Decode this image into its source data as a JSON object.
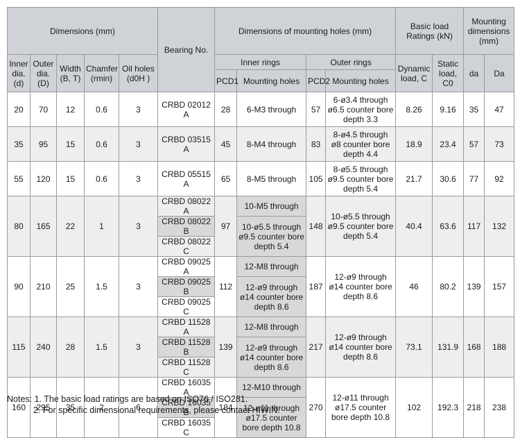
{
  "headers": {
    "dimensions": "Dimensions (mm)",
    "bearing_no": "Bearing No.",
    "mounting_holes_dims": "Dimensions of mounting holes (mm)",
    "basic_load": "Basic load Ratings (kN)",
    "mounting_dims": "Mounting dimensions (mm)",
    "inner_dia": "Inner dia. (d)",
    "outer_dia": "Outer dia. (D)",
    "width": "Width (B, T)",
    "chamfer": "Chamfer (rmin)",
    "oil_holes": "Oil holes (d0H )",
    "inner_rings": "Inner rings",
    "outer_rings": "Outer rings",
    "pcd1": "PCD1",
    "pcd2": "PCD2",
    "mounting_holes": "Mounting holes",
    "dynamic": "Dynamic load, C",
    "static": "Static load, C0",
    "da_small": "da",
    "da_large": "Da"
  },
  "groups": [
    {
      "d": "20",
      "D": "70",
      "B": "12",
      "r": "0.6",
      "oil": "3",
      "pcd1": "28",
      "pcd2": "57",
      "c": "8.26",
      "c0": "9.16",
      "da": "35",
      "Da": "47",
      "shade": "white",
      "rows": [
        {
          "bearing": "CRBD 02012 A",
          "inner": "6-M3 through"
        }
      ],
      "outer": "6-ø3.4 through ø6.5 counter bore depth 3.3"
    },
    {
      "d": "35",
      "D": "95",
      "B": "15",
      "r": "0.6",
      "oil": "3",
      "pcd1": "45",
      "pcd2": "83",
      "c": "18.9",
      "c0": "23.4",
      "da": "57",
      "Da": "73",
      "shade": "gray",
      "rows": [
        {
          "bearing": "CRBD 03515 A",
          "inner": "8-M4 through"
        }
      ],
      "outer": "8-ø4.5 through ø8 counter bore depth 4.4"
    },
    {
      "d": "55",
      "D": "120",
      "B": "15",
      "r": "0.6",
      "oil": "3",
      "pcd1": "65",
      "pcd2": "105",
      "c": "21.7",
      "c0": "30.6",
      "da": "77",
      "Da": "92",
      "shade": "white",
      "rows": [
        {
          "bearing": "CRBD 05515 A",
          "inner": "8-M5 through"
        }
      ],
      "outer": "8-ø5.5 through ø9.5 counter bore depth 5.4"
    },
    {
      "d": "80",
      "D": "165",
      "B": "22",
      "r": "1",
      "oil": "3",
      "pcd1": "97",
      "pcd2": "148",
      "c": "40.4",
      "c0": "63.6",
      "da": "117",
      "Da": "132",
      "shade": "gray",
      "rows": [
        {
          "bearing": "CRBD 08022 A",
          "inner": "10-M5 through"
        },
        {
          "bearing": "CRBD 08022 B",
          "inner": "10-ø5.5 through ø9.5 counter bore depth 5.4"
        },
        {
          "bearing": "CRBD 08022 C",
          "inner": ""
        }
      ],
      "outer": "10-ø5.5 through ø9.5 counter bore depth 5.4"
    },
    {
      "d": "90",
      "D": "210",
      "B": "25",
      "r": "1.5",
      "oil": "3",
      "pcd1": "112",
      "pcd2": "187",
      "c": "46",
      "c0": "80.2",
      "da": "139",
      "Da": "157",
      "shade": "white",
      "rows": [
        {
          "bearing": "CRBD 09025 A",
          "inner": "12-M8 through"
        },
        {
          "bearing": "CRBD 09025 B",
          "inner": "12-ø9 through ø14 counter bore depth 8.6"
        },
        {
          "bearing": "CRBD 09025 C",
          "inner": ""
        }
      ],
      "outer": "12-ø9 through ø14 counter bore depth 8.6"
    },
    {
      "d": "115",
      "D": "240",
      "B": "28",
      "r": "1.5",
      "oil": "3",
      "pcd1": "139",
      "pcd2": "217",
      "c": "73.1",
      "c0": "131.9",
      "da": "168",
      "Da": "188",
      "shade": "gray",
      "rows": [
        {
          "bearing": "CRBD 11528 A",
          "inner": "12-M8 through"
        },
        {
          "bearing": "CRBD 11528 B",
          "inner": "12-ø9 through ø14 counter bore depth 8.6"
        },
        {
          "bearing": "CRBD 11528 C",
          "inner": ""
        }
      ],
      "outer": "12-ø9 through ø14 counter bore depth 8.6"
    },
    {
      "d": "160",
      "D": "295",
      "B": "35",
      "r": "2",
      "oil": "6",
      "pcd1": "184",
      "pcd2": "270",
      "c": "102",
      "c0": "192.3",
      "da": "218",
      "Da": "238",
      "shade": "white",
      "rows": [
        {
          "bearing": "CRBD 16035 A",
          "inner": "12-M10 through"
        },
        {
          "bearing": "CRBD 16035 B",
          "inner": "12-ø11 through ø17.5 counter bore depth 10.8"
        },
        {
          "bearing": "CRBD 16035 C",
          "inner": ""
        }
      ],
      "outer": "12-ø11 through ø17.5 counter bore depth 10.8"
    }
  ],
  "notes": {
    "line1": "Notes: 1. The basic load ratings are based on ISO76 / ISO281.",
    "line2": "2. For specific dimensional requirements, please contact HIWIN."
  }
}
